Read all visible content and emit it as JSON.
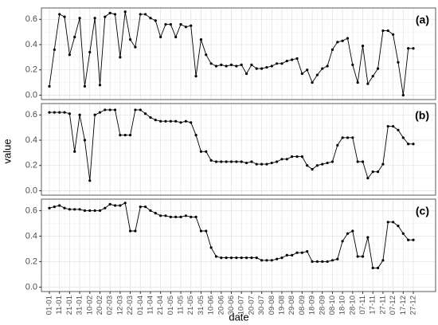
{
  "y_label": "value",
  "x_axis": {
    "label": "date",
    "categories": [
      "01-01",
      null,
      "11-01",
      null,
      "21-01",
      null,
      "31-01",
      null,
      "10-02",
      null,
      "20-02",
      null,
      "02-03",
      null,
      "12-03",
      null,
      "22-03",
      null,
      "01-04",
      null,
      "11-04",
      null,
      "21-04",
      null,
      "01-05",
      null,
      "11-05",
      null,
      "21-05",
      null,
      "31-05",
      null,
      "10-06",
      null,
      "20-06",
      null,
      "30-06",
      null,
      "10-07",
      null,
      "20-07",
      null,
      "30-07",
      null,
      "09-08",
      null,
      "19-08",
      null,
      "29-08",
      null,
      "08-09",
      null,
      "18-09",
      null,
      "28-09",
      null,
      "08-10",
      null,
      "18-10",
      null,
      "28-10",
      null,
      "07-11",
      null,
      "17-11",
      null,
      "27-11",
      null,
      "07-12",
      null,
      "17-12",
      null,
      "27-12"
    ]
  },
  "chart_data": [
    {
      "type": "line",
      "panel_label": "(a)",
      "color": "#000000",
      "grid": true,
      "ylim": [
        -0.035,
        0.69
      ],
      "yticks": [
        {
          "value": 0,
          "label": "0.0"
        },
        0.2,
        0.4,
        0.6
      ],
      "values": [
        0.07,
        0.36,
        0.64,
        0.62,
        0.32,
        0.46,
        0.61,
        0.07,
        0.34,
        0.61,
        0.08,
        0.62,
        0.65,
        0.64,
        0.3,
        0.66,
        0.44,
        0.38,
        0.64,
        0.64,
        0.61,
        0.59,
        0.46,
        0.56,
        0.56,
        0.46,
        0.56,
        0.54,
        0.55,
        0.15,
        0.44,
        0.32,
        0.25,
        0.23,
        0.24,
        0.23,
        0.24,
        0.23,
        0.24,
        0.17,
        0.24,
        0.21,
        0.21,
        0.22,
        0.23,
        0.25,
        0.25,
        0.27,
        0.28,
        0.29,
        0.17,
        0.2,
        0.1,
        0.16,
        0.21,
        0.23,
        0.36,
        0.42,
        0.43,
        0.45,
        0.24,
        0.1,
        0.39,
        0.09,
        0.15,
        0.21,
        0.51,
        0.51,
        0.48,
        0.26,
        0.0,
        0.37,
        0.37
      ]
    },
    {
      "type": "line",
      "panel_label": "(b)",
      "color": "#000000",
      "grid": true,
      "ylim": [
        -0.035,
        0.69
      ],
      "yticks": [
        {
          "value": 0,
          "label": "0.0"
        },
        0.2,
        0.4,
        0.6
      ],
      "values": [
        0.62,
        0.62,
        0.62,
        0.62,
        0.61,
        0.31,
        0.6,
        0.4,
        0.08,
        0.6,
        0.62,
        0.64,
        0.64,
        0.64,
        0.44,
        0.44,
        0.44,
        0.64,
        0.64,
        0.61,
        0.58,
        0.56,
        0.55,
        0.55,
        0.55,
        0.55,
        0.54,
        0.55,
        0.54,
        0.44,
        0.31,
        0.31,
        0.24,
        0.23,
        0.23,
        0.23,
        0.23,
        0.23,
        0.23,
        0.22,
        0.23,
        0.21,
        0.21,
        0.21,
        0.22,
        0.23,
        0.25,
        0.25,
        0.27,
        0.27,
        0.27,
        0.2,
        0.17,
        0.2,
        0.21,
        0.22,
        0.23,
        0.36,
        0.42,
        0.42,
        0.42,
        0.23,
        0.23,
        0.1,
        0.15,
        0.15,
        0.21,
        0.51,
        0.51,
        0.48,
        0.42,
        0.37,
        0.37
      ]
    },
    {
      "type": "line",
      "panel_label": "(c)",
      "color": "#000000",
      "grid": true,
      "ylim": [
        -0.035,
        0.69
      ],
      "yticks": [
        {
          "value": 0,
          "label": "0.0"
        },
        0.2,
        0.4,
        0.6
      ],
      "values": [
        0.62,
        0.63,
        0.64,
        0.62,
        0.61,
        0.61,
        0.61,
        0.6,
        0.6,
        0.6,
        0.6,
        0.62,
        0.65,
        0.64,
        0.64,
        0.66,
        0.44,
        0.44,
        0.63,
        0.63,
        0.6,
        0.58,
        0.56,
        0.56,
        0.55,
        0.55,
        0.55,
        0.56,
        0.55,
        0.55,
        0.44,
        0.44,
        0.31,
        0.24,
        0.23,
        0.23,
        0.23,
        0.23,
        0.23,
        0.23,
        0.23,
        0.23,
        0.21,
        0.21,
        0.21,
        0.22,
        0.23,
        0.25,
        0.25,
        0.27,
        0.27,
        0.28,
        0.2,
        0.2,
        0.2,
        0.2,
        0.21,
        0.22,
        0.36,
        0.42,
        0.44,
        0.24,
        0.24,
        0.39,
        0.15,
        0.15,
        0.21,
        0.51,
        0.51,
        0.48,
        0.42,
        0.37,
        0.37
      ]
    }
  ]
}
